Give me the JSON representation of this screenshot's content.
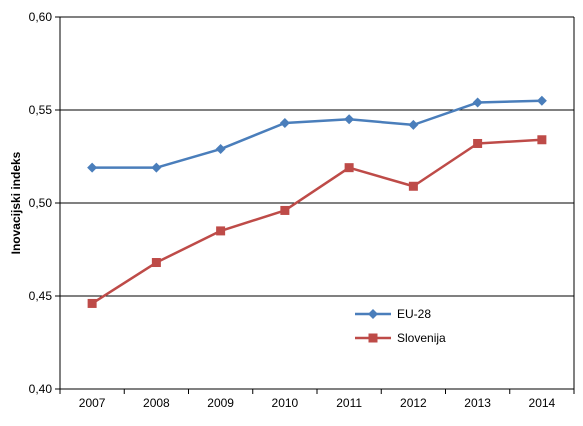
{
  "chart_data": {
    "type": "line",
    "title": "",
    "xlabel": "",
    "ylabel": "Inovacijski indeks",
    "categories": [
      "2007",
      "2008",
      "2009",
      "2010",
      "2011",
      "2012",
      "2013",
      "2014"
    ],
    "ylim": [
      0.4,
      0.6
    ],
    "yticks": [
      0.4,
      0.45,
      0.5,
      0.55,
      0.6
    ],
    "ytick_labels": [
      "0,40",
      "0,45",
      "0,50",
      "0,55",
      "0,60"
    ],
    "grid": "horizontal",
    "legend_position": "right",
    "series": [
      {
        "name": "EU-28",
        "color": "#4a7ebb",
        "marker": "diamond",
        "values": [
          0.519,
          0.519,
          0.529,
          0.543,
          0.545,
          0.542,
          0.554,
          0.555
        ]
      },
      {
        "name": "Slovenija",
        "color": "#be4b48",
        "marker": "square",
        "values": [
          0.446,
          0.468,
          0.485,
          0.496,
          0.519,
          0.509,
          0.532,
          0.534
        ]
      }
    ]
  }
}
